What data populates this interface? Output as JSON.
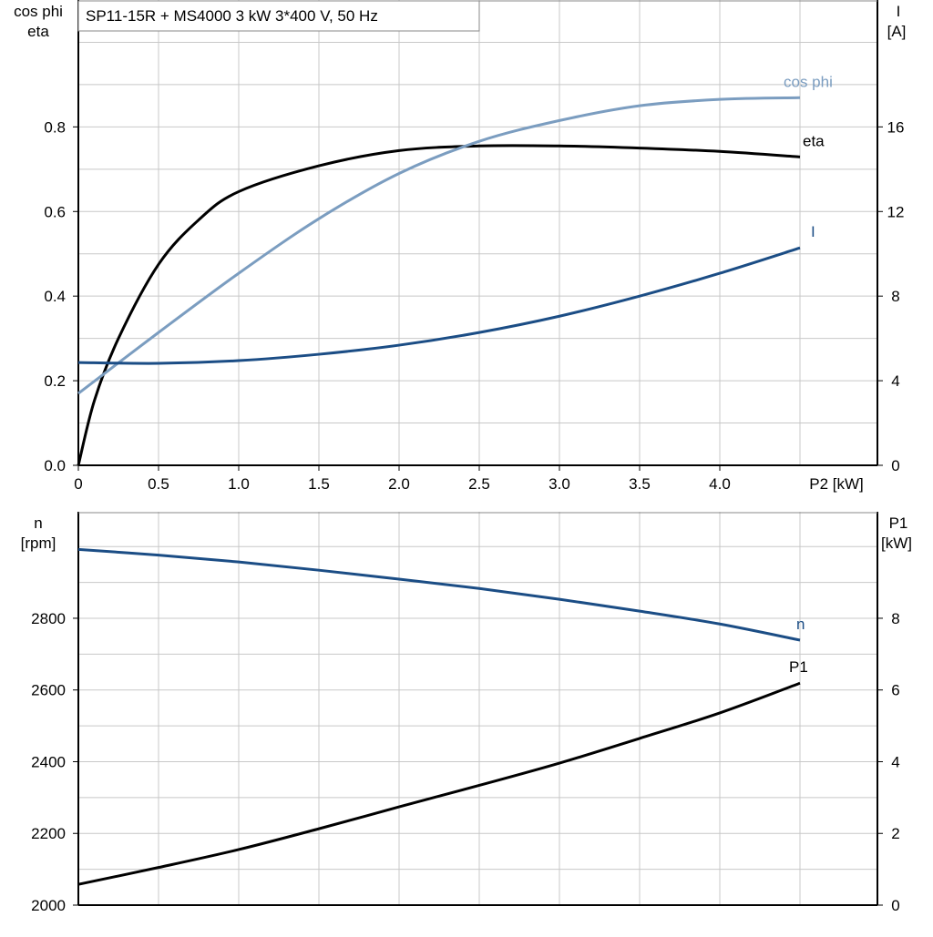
{
  "chart_data": [
    {
      "type": "line",
      "title": "SP11-15R + MS4000   3 kW   3*400 V, 50 Hz",
      "xlabel": "P2 [kW]",
      "xlim": [
        0,
        4.5
      ],
      "xticks": [
        "0",
        "0.5",
        "1.0",
        "1.5",
        "2.0",
        "2.5",
        "3.0",
        "3.5",
        "4.0"
      ],
      "ylabel_left": [
        "cos phi",
        "eta"
      ],
      "ylim_left": [
        0,
        1.1
      ],
      "yticks_left": [
        "0.0",
        "0.2",
        "0.4",
        "0.6",
        "0.8"
      ],
      "ylabel_right": [
        "I",
        "[A]"
      ],
      "ylim_right": [
        0,
        22
      ],
      "yticks_right": [
        "0",
        "4",
        "8",
        "12",
        "16"
      ],
      "grid": true,
      "series": [
        {
          "name": "eta",
          "axis": "left",
          "color": "#000000",
          "x": [
            0,
            0.1,
            0.25,
            0.5,
            0.75,
            1.0,
            1.5,
            2.0,
            2.5,
            3.0,
            3.5,
            4.0,
            4.5
          ],
          "y": [
            0,
            0.153,
            0.3,
            0.475,
            0.58,
            0.647,
            0.708,
            0.744,
            0.755,
            0.755,
            0.75,
            0.742,
            0.729
          ]
        },
        {
          "name": "cos phi",
          "axis": "left",
          "color": "#7b9dc0",
          "x": [
            0,
            0.5,
            1.0,
            1.5,
            2.0,
            2.5,
            3.0,
            3.5,
            4.0,
            4.5
          ],
          "y": [
            0.17,
            0.314,
            0.454,
            0.583,
            0.69,
            0.766,
            0.815,
            0.85,
            0.865,
            0.869
          ]
        },
        {
          "name": "I",
          "axis": "right",
          "color": "#1b4d85",
          "x": [
            0,
            0.5,
            1.0,
            1.5,
            2.0,
            2.5,
            3.0,
            3.5,
            4.0,
            4.5
          ],
          "y": [
            4.86,
            4.82,
            4.95,
            5.25,
            5.68,
            6.28,
            7.05,
            8.0,
            9.08,
            10.28
          ]
        }
      ]
    },
    {
      "type": "line",
      "xlim": [
        0,
        4.5
      ],
      "ylabel_left": [
        "n",
        "[rpm]"
      ],
      "ylim_left": [
        2000,
        3097
      ],
      "yticks_left": [
        "2000",
        "2200",
        "2400",
        "2600",
        "2800"
      ],
      "ylabel_right": [
        "P1",
        "[kW]"
      ],
      "ylim_right": [
        0,
        10.97
      ],
      "yticks_right": [
        "0",
        "2",
        "4",
        "6",
        "8"
      ],
      "grid": true,
      "series": [
        {
          "name": "n",
          "axis": "left",
          "color": "#1b4d85",
          "x": [
            0,
            0.5,
            1.0,
            1.5,
            2.0,
            2.5,
            3.0,
            3.5,
            4.0,
            4.5
          ],
          "y": [
            2992,
            2976,
            2957,
            2934,
            2909,
            2883,
            2853,
            2820,
            2784,
            2739
          ]
        },
        {
          "name": "P1",
          "axis": "right",
          "color": "#000000",
          "x": [
            0,
            0.5,
            1.0,
            1.5,
            2.0,
            2.5,
            3.0,
            3.5,
            4.0,
            4.5
          ],
          "y": [
            0.58,
            1.05,
            1.55,
            2.13,
            2.74,
            3.34,
            3.96,
            4.65,
            5.36,
            6.19
          ]
        }
      ]
    }
  ]
}
